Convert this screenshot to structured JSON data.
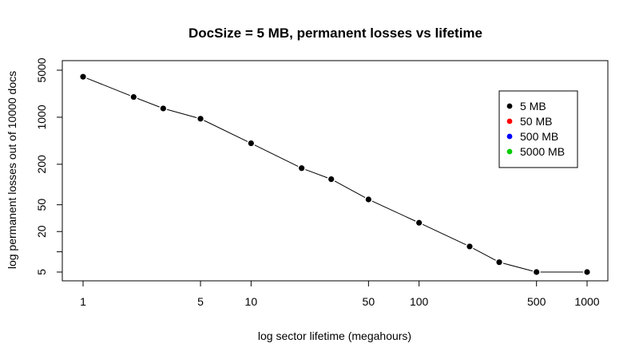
{
  "chart_data": {
    "type": "line",
    "title": "DocSize = 5 MB, permanent losses vs lifetime",
    "xlabel": "log sector lifetime (megahours)",
    "ylabel": "log permanent losses out of 10000 docs",
    "x_scale": "log",
    "y_scale": "log",
    "xlim": [
      1,
      1000
    ],
    "ylim": [
      5,
      5000
    ],
    "x_ticks": [
      1,
      5,
      10,
      50,
      100,
      500,
      1000
    ],
    "x_tick_labels": [
      "1",
      "5",
      "10",
      "50",
      "100",
      "500",
      "1000"
    ],
    "y_ticks": [
      5,
      10,
      20,
      50,
      200,
      1000,
      5000
    ],
    "y_tick_labels": [
      "5",
      "",
      "20",
      "50",
      "200",
      "1000",
      "5000"
    ],
    "grid": false,
    "legend_position": "top-right",
    "series": [
      {
        "name": "5 MB",
        "color": "#000000",
        "x": [
          1,
          2,
          3,
          5,
          10,
          20,
          30,
          50,
          100,
          200,
          300,
          500,
          1000
        ],
        "y": [
          4000,
          2000,
          1350,
          950,
          410,
          175,
          120,
          60,
          27,
          12,
          7,
          5,
          5
        ]
      }
    ],
    "legend": [
      {
        "label": "5 MB",
        "color": "#000000"
      },
      {
        "label": "50 MB",
        "color": "#ff0000"
      },
      {
        "label": "500 MB",
        "color": "#0000ff"
      },
      {
        "label": "5000 MB",
        "color": "#00cc00"
      }
    ]
  }
}
